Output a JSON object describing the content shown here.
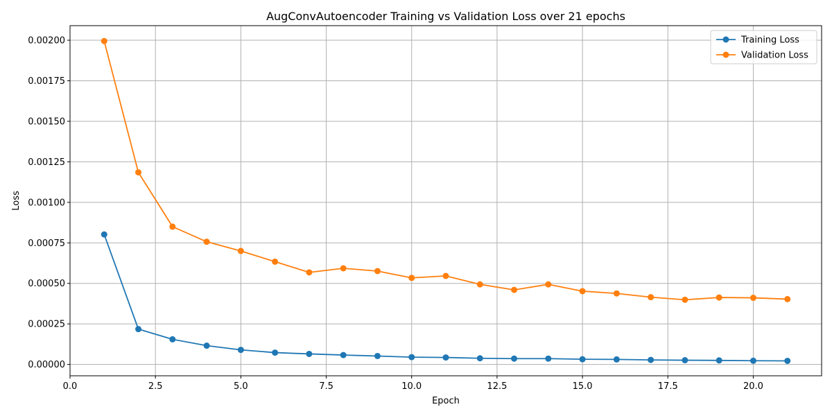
{
  "chart_data": {
    "type": "line",
    "title": "AugConvAutoencoder Training vs Validation Loss over 21 epochs",
    "xlabel": "Epoch",
    "ylabel": "Loss",
    "xlim": [
      0.0,
      22.0
    ],
    "ylim": [
      -7e-05,
      0.00209
    ],
    "xticks": [
      0.0,
      2.5,
      5.0,
      7.5,
      10.0,
      12.5,
      15.0,
      17.5,
      20.0
    ],
    "xtick_labels": [
      "0.0",
      "2.5",
      "5.0",
      "7.5",
      "10.0",
      "12.5",
      "15.0",
      "17.5",
      "20.0"
    ],
    "yticks": [
      0.0,
      0.00025,
      0.0005,
      0.00075,
      0.001,
      0.00125,
      0.0015,
      0.00175,
      0.002
    ],
    "ytick_labels": [
      "0.00000",
      "0.00025",
      "0.00050",
      "0.00075",
      "0.00100",
      "0.00125",
      "0.00150",
      "0.00175",
      "0.00200"
    ],
    "grid": true,
    "legend_position": "top-right",
    "x": [
      1,
      2,
      3,
      4,
      5,
      6,
      7,
      8,
      9,
      10,
      11,
      12,
      13,
      14,
      15,
      16,
      17,
      18,
      19,
      20,
      21
    ],
    "series": [
      {
        "name": "Training Loss",
        "color": "#1f77b4",
        "values": [
          0.000802,
          0.000218,
          0.000155,
          0.000116,
          9e-05,
          7.3e-05,
          6.5e-05,
          5.8e-05,
          5.2e-05,
          4.5e-05,
          4.3e-05,
          3.8e-05,
          3.6e-05,
          3.6e-05,
          3.2e-05,
          3.1e-05,
          2.8e-05,
          2.6e-05,
          2.5e-05,
          2.3e-05,
          2.2e-05
        ]
      },
      {
        "name": "Validation Loss",
        "color": "#ff7f0e",
        "values": [
          0.001995,
          0.001185,
          0.00085,
          0.000757,
          0.0007,
          0.000634,
          0.000568,
          0.000593,
          0.000576,
          0.000534,
          0.000546,
          0.000494,
          0.00046,
          0.000494,
          0.000452,
          0.000438,
          0.000415,
          0.000399,
          0.000413,
          0.000411,
          0.000403
        ]
      }
    ]
  }
}
